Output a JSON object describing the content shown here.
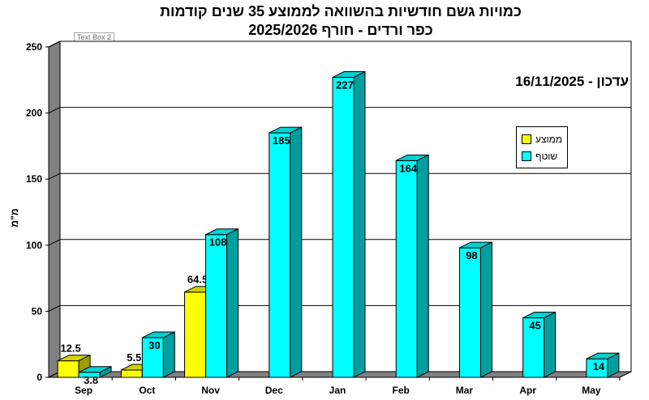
{
  "header": {
    "title_line1": "כמויות גשם חודשיות בהשוואה לממוצע 35 שנים קודמות",
    "title_line2": "כפר ורדים - חורף 2025/2026",
    "textbox_label": "Text Box 2",
    "updated_text": "עדכון - 16/11/2025"
  },
  "chart_data": {
    "type": "bar",
    "title": "כמויות גשם חודשיות בהשוואה לממוצע 35 שנים קודמות",
    "subtitle": "כפר ורדים - חורף 2025/2026",
    "ylabel": "מ\"מ",
    "xlabel": "",
    "categories": [
      "Sep",
      "Oct",
      "Nov",
      "Dec",
      "Jan",
      "Feb",
      "Mar",
      "Apr",
      "May"
    ],
    "ylim": [
      0,
      250
    ],
    "yticks": [
      0,
      50,
      100,
      150,
      200,
      250
    ],
    "grid": true,
    "legend_position": "right",
    "series": [
      {
        "name": "ממוצע",
        "color": "#ffff00",
        "values": [
          12.5,
          5.5,
          64.5,
          null,
          null,
          null,
          null,
          null,
          null
        ],
        "labels": [
          "12.5",
          "5.5",
          "64.5",
          "",
          "",
          "",
          "",
          "",
          ""
        ]
      },
      {
        "name": "שוטף",
        "color": "#00ffff",
        "values": [
          3.8,
          30,
          108,
          185,
          227,
          164,
          98,
          45,
          14
        ],
        "labels": [
          "3.8",
          "30",
          "108",
          "185",
          "227",
          "164",
          "98",
          "45",
          "14"
        ]
      }
    ]
  },
  "legend": {
    "items": [
      {
        "label": "ממוצע",
        "color": "#ffff00"
      },
      {
        "label": "שוטף",
        "color": "#00ffff"
      }
    ]
  }
}
